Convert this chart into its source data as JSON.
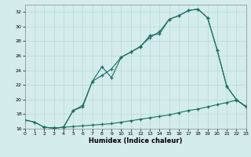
{
  "xlabel": "Humidex (Indice chaleur)",
  "bg_color": "#d4ecec",
  "grid_color": "#b8d8d8",
  "line_color": "#1a6e62",
  "xlim": [
    0,
    23
  ],
  "ylim": [
    16,
    33
  ],
  "yticks": [
    16,
    18,
    20,
    22,
    24,
    26,
    28,
    30,
    32
  ],
  "xticks": [
    0,
    1,
    2,
    3,
    4,
    5,
    6,
    7,
    8,
    9,
    10,
    11,
    12,
    13,
    14,
    15,
    16,
    17,
    18,
    19,
    20,
    21,
    22,
    23
  ],
  "line1_x": [
    0,
    1,
    2,
    3,
    4,
    5,
    6,
    7,
    8,
    9,
    10,
    11,
    12,
    13,
    14,
    15,
    16,
    17,
    18,
    19,
    20,
    21,
    22,
    23
  ],
  "line1_y": [
    17.2,
    16.9,
    16.2,
    16.1,
    16.2,
    16.3,
    16.4,
    16.5,
    16.6,
    16.7,
    16.9,
    17.1,
    17.3,
    17.5,
    17.7,
    17.9,
    18.2,
    18.5,
    18.7,
    19.0,
    19.3,
    19.6,
    19.9,
    19.1
  ],
  "line2_x": [
    0,
    1,
    2,
    3,
    4,
    5,
    6,
    7,
    8,
    9,
    10,
    11,
    12,
    13,
    14,
    15,
    16,
    17,
    18,
    19,
    20,
    21,
    22,
    23
  ],
  "line2_y": [
    17.2,
    16.9,
    16.2,
    16.1,
    16.2,
    18.5,
    19.2,
    22.5,
    23.3,
    24.2,
    25.8,
    26.5,
    27.2,
    28.8,
    29.0,
    31.0,
    31.5,
    32.2,
    32.4,
    31.2,
    26.8,
    21.8,
    20.0,
    19.0
  ],
  "line3_x": [
    2,
    3,
    4,
    5,
    6,
    7,
    8,
    9,
    10,
    11,
    12,
    13,
    14,
    15,
    16,
    17,
    18,
    19,
    20,
    21,
    22,
    23
  ],
  "line3_y": [
    16.2,
    16.1,
    16.2,
    18.5,
    19.0,
    22.5,
    24.5,
    23.0,
    25.8,
    26.5,
    27.3,
    28.5,
    29.3,
    31.0,
    31.5,
    32.2,
    32.4,
    31.2,
    26.8,
    21.8,
    20.0,
    19.0
  ]
}
